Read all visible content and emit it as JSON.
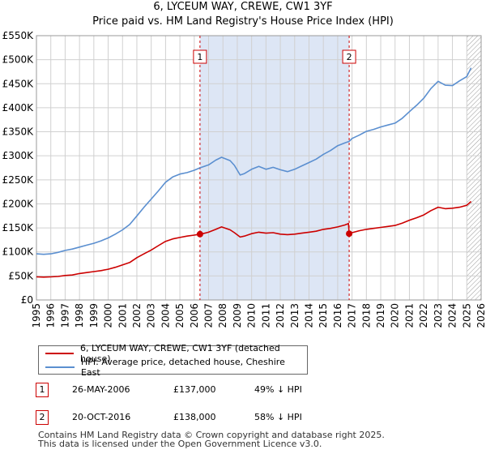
{
  "header": {
    "title": "6, LYCEUM WAY, CREWE, CW1 3YF",
    "subtitle": "Price paid vs. HM Land Registry's House Price Index (HPI)"
  },
  "chart_data": {
    "type": "line",
    "title": "6, LYCEUM WAY, CREWE, CW1 3YF",
    "subtitle": "Price paid vs. HM Land Registry's House Price Index (HPI)",
    "xlabel": "",
    "ylabel": "",
    "xlim": [
      1995,
      2026
    ],
    "ylim": [
      0,
      550000
    ],
    "grid": true,
    "x_ticks": [
      "1995",
      "1996",
      "1997",
      "1998",
      "1999",
      "2000",
      "2001",
      "2002",
      "2003",
      "2004",
      "2005",
      "2006",
      "2007",
      "2008",
      "2009",
      "2010",
      "2011",
      "2012",
      "2013",
      "2014",
      "2015",
      "2016",
      "2017",
      "2018",
      "2019",
      "2020",
      "2021",
      "2022",
      "2023",
      "2024",
      "2025",
      "2026"
    ],
    "y_ticks": [
      {
        "value": 0,
        "label": "£0"
      },
      {
        "value": 50000,
        "label": "£50K"
      },
      {
        "value": 100000,
        "label": "£100K"
      },
      {
        "value": 150000,
        "label": "£150K"
      },
      {
        "value": 200000,
        "label": "£200K"
      },
      {
        "value": 250000,
        "label": "£250K"
      },
      {
        "value": 300000,
        "label": "£300K"
      },
      {
        "value": 350000,
        "label": "£350K"
      },
      {
        "value": 400000,
        "label": "£400K"
      },
      {
        "value": 450000,
        "label": "£450K"
      },
      {
        "value": 500000,
        "label": "£500K"
      },
      {
        "value": 550000,
        "label": "£550K"
      }
    ],
    "shaded_region": {
      "from": 2006.4,
      "to": 2016.8,
      "color": "#dde6f5"
    },
    "future_hatch_from": 2025.0,
    "series": [
      {
        "name": "6, LYCEUM WAY, CREWE, CW1 3YF (detached house)",
        "color": "#cc0000",
        "points": [
          [
            1995.0,
            48000
          ],
          [
            1995.5,
            47500
          ],
          [
            1996.0,
            48000
          ],
          [
            1996.5,
            49000
          ],
          [
            1997.0,
            51000
          ],
          [
            1997.5,
            52000
          ],
          [
            1998.0,
            55000
          ],
          [
            1998.5,
            57000
          ],
          [
            1999.0,
            59000
          ],
          [
            1999.5,
            61000
          ],
          [
            2000.0,
            64000
          ],
          [
            2000.5,
            68000
          ],
          [
            2001.0,
            73000
          ],
          [
            2001.5,
            78000
          ],
          [
            2002.0,
            88000
          ],
          [
            2002.5,
            96000
          ],
          [
            2003.0,
            104000
          ],
          [
            2003.5,
            113000
          ],
          [
            2004.0,
            122000
          ],
          [
            2004.5,
            127000
          ],
          [
            2005.0,
            130000
          ],
          [
            2005.5,
            133000
          ],
          [
            2006.0,
            135000
          ],
          [
            2006.4,
            137000
          ],
          [
            2006.6,
            138000
          ],
          [
            2007.0,
            141000
          ],
          [
            2007.5,
            147000
          ],
          [
            2007.9,
            152000
          ],
          [
            2008.5,
            146000
          ],
          [
            2008.8,
            140000
          ],
          [
            2009.2,
            131000
          ],
          [
            2009.5,
            133000
          ],
          [
            2010.0,
            138000
          ],
          [
            2010.5,
            141000
          ],
          [
            2011.0,
            139000
          ],
          [
            2011.5,
            140000
          ],
          [
            2012.0,
            137000
          ],
          [
            2012.5,
            136000
          ],
          [
            2013.0,
            137000
          ],
          [
            2013.5,
            139000
          ],
          [
            2014.0,
            141000
          ],
          [
            2014.5,
            143000
          ],
          [
            2015.0,
            147000
          ],
          [
            2015.5,
            149000
          ],
          [
            2016.0,
            152000
          ],
          [
            2016.5,
            156000
          ],
          [
            2016.75,
            159000
          ],
          [
            2016.8,
            138000
          ],
          [
            2017.0,
            140000
          ],
          [
            2017.5,
            144000
          ],
          [
            2018.0,
            147000
          ],
          [
            2018.5,
            149000
          ],
          [
            2019.0,
            151000
          ],
          [
            2019.5,
            153000
          ],
          [
            2020.0,
            155000
          ],
          [
            2020.5,
            160000
          ],
          [
            2021.0,
            166000
          ],
          [
            2021.5,
            171000
          ],
          [
            2022.0,
            177000
          ],
          [
            2022.5,
            186000
          ],
          [
            2023.0,
            193000
          ],
          [
            2023.5,
            190000
          ],
          [
            2024.0,
            191000
          ],
          [
            2024.5,
            193000
          ],
          [
            2025.0,
            197000
          ],
          [
            2025.3,
            205000
          ]
        ]
      },
      {
        "name": "HPI: Average price, detached house, Cheshire East",
        "color": "#5b8fd0",
        "points": [
          [
            1995.0,
            96000
          ],
          [
            1995.5,
            95000
          ],
          [
            1996.0,
            96000
          ],
          [
            1996.5,
            99000
          ],
          [
            1997.0,
            103000
          ],
          [
            1997.5,
            106000
          ],
          [
            1998.0,
            110000
          ],
          [
            1998.5,
            114000
          ],
          [
            1999.0,
            118000
          ],
          [
            1999.5,
            123000
          ],
          [
            2000.0,
            129000
          ],
          [
            2000.5,
            137000
          ],
          [
            2001.0,
            146000
          ],
          [
            2001.5,
            157000
          ],
          [
            2002.0,
            175000
          ],
          [
            2002.5,
            193000
          ],
          [
            2003.0,
            210000
          ],
          [
            2003.5,
            227000
          ],
          [
            2004.0,
            245000
          ],
          [
            2004.5,
            256000
          ],
          [
            2005.0,
            262000
          ],
          [
            2005.5,
            265000
          ],
          [
            2006.0,
            270000
          ],
          [
            2006.4,
            275000
          ],
          [
            2007.0,
            281000
          ],
          [
            2007.5,
            291000
          ],
          [
            2007.9,
            297000
          ],
          [
            2008.5,
            290000
          ],
          [
            2008.8,
            280000
          ],
          [
            2009.2,
            260000
          ],
          [
            2009.5,
            263000
          ],
          [
            2010.0,
            272000
          ],
          [
            2010.5,
            278000
          ],
          [
            2011.0,
            272000
          ],
          [
            2011.5,
            276000
          ],
          [
            2012.0,
            271000
          ],
          [
            2012.5,
            267000
          ],
          [
            2013.0,
            272000
          ],
          [
            2013.5,
            279000
          ],
          [
            2014.0,
            286000
          ],
          [
            2014.5,
            293000
          ],
          [
            2015.0,
            303000
          ],
          [
            2015.5,
            311000
          ],
          [
            2016.0,
            321000
          ],
          [
            2016.5,
            327000
          ],
          [
            2016.8,
            330000
          ],
          [
            2017.0,
            336000
          ],
          [
            2017.5,
            343000
          ],
          [
            2018.0,
            351000
          ],
          [
            2018.5,
            355000
          ],
          [
            2019.0,
            360000
          ],
          [
            2019.5,
            364000
          ],
          [
            2020.0,
            368000
          ],
          [
            2020.5,
            378000
          ],
          [
            2021.0,
            392000
          ],
          [
            2021.5,
            405000
          ],
          [
            2022.0,
            420000
          ],
          [
            2022.5,
            440000
          ],
          [
            2023.0,
            455000
          ],
          [
            2023.5,
            447000
          ],
          [
            2024.0,
            446000
          ],
          [
            2024.5,
            456000
          ],
          [
            2025.0,
            465000
          ],
          [
            2025.3,
            483000
          ]
        ]
      }
    ],
    "markers": [
      {
        "label": "1",
        "x": 2006.4,
        "y": 137000
      },
      {
        "label": "2",
        "x": 2016.8,
        "y": 138000
      }
    ]
  },
  "legend": {
    "items": [
      {
        "label": "6, LYCEUM WAY, CREWE, CW1 3YF (detached house)",
        "color": "#cc0000"
      },
      {
        "label": "HPI: Average price, detached house, Cheshire East",
        "color": "#5b8fd0"
      }
    ]
  },
  "transactions": [
    {
      "id": "1",
      "date": "26-MAY-2006",
      "price": "£137,000",
      "hpi": "49% ↓ HPI"
    },
    {
      "id": "2",
      "date": "20-OCT-2016",
      "price": "£138,000",
      "hpi": "58% ↓ HPI"
    }
  ],
  "footer": {
    "line1": "Contains HM Land Registry data © Crown copyright and database right 2025.",
    "line2": "This data is licensed under the Open Government Licence v3.0."
  }
}
